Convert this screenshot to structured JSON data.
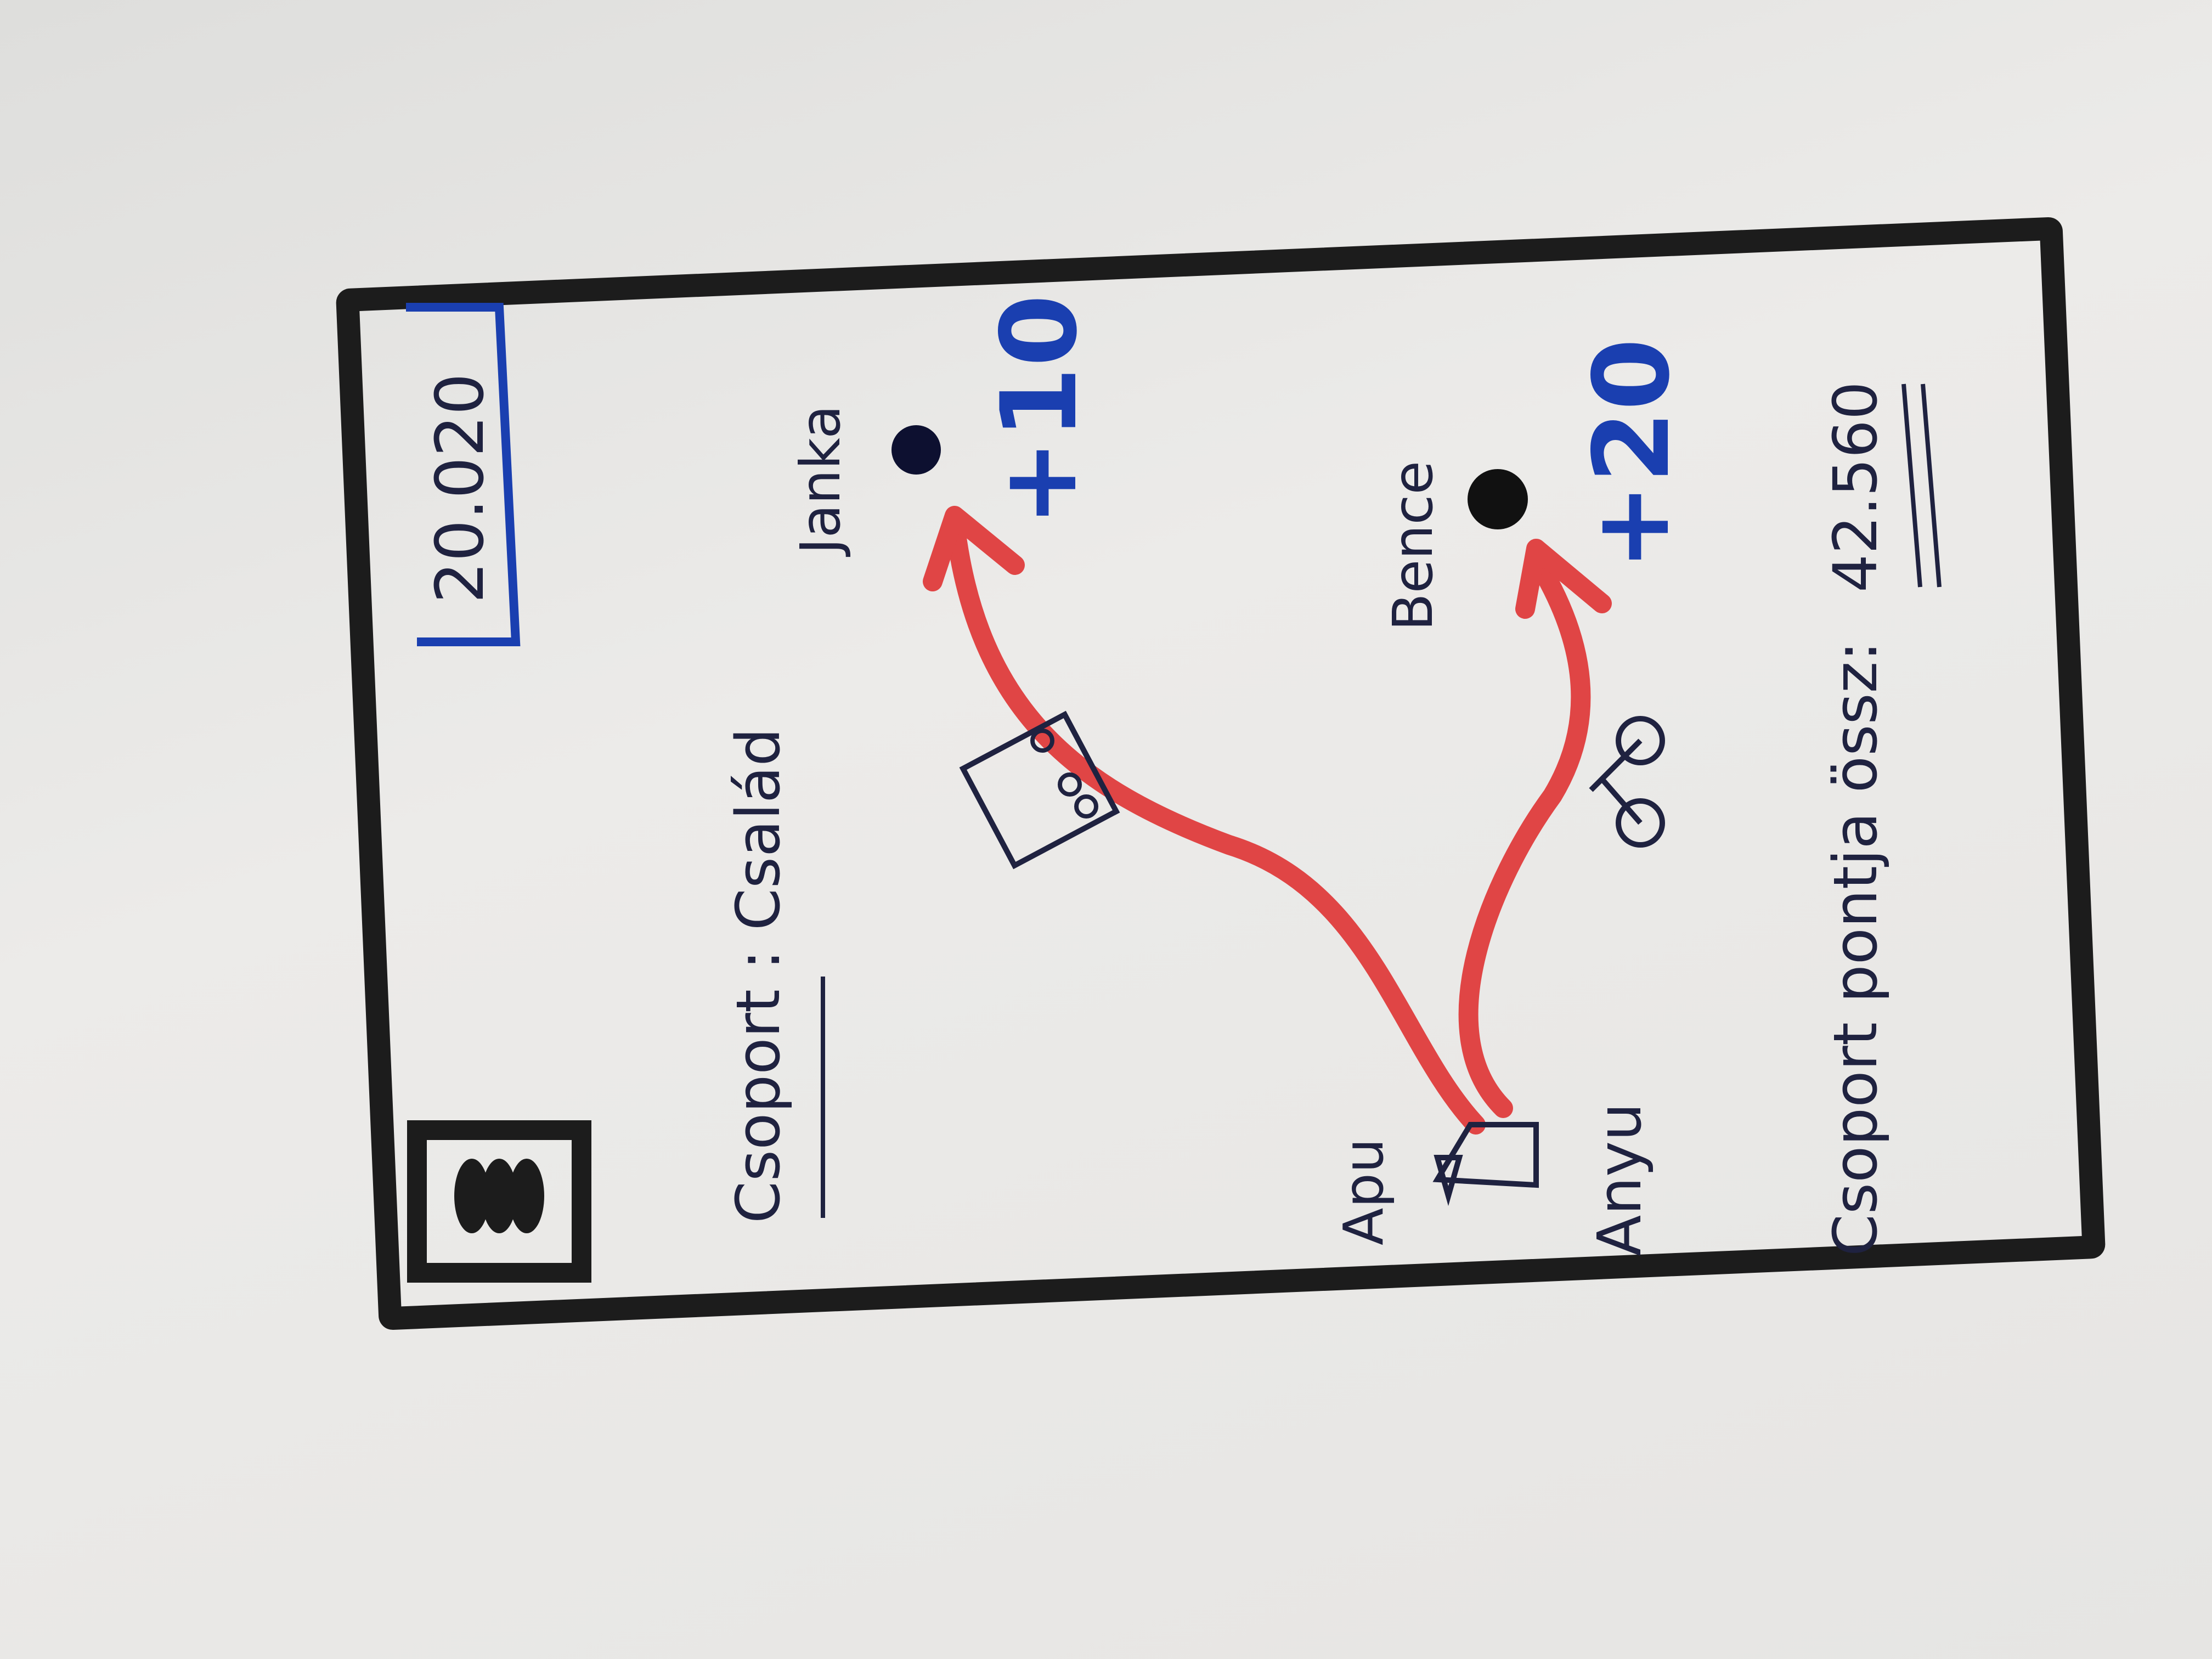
{
  "score_box": {
    "value": "20.020"
  },
  "menu_button": {
    "icon": "hamburger-menu-icon"
  },
  "group": {
    "label": "Csoport : Család"
  },
  "members": {
    "apu": {
      "name": "Apu"
    },
    "anyu": {
      "name": "Anyu"
    },
    "janka": {
      "name": "Janka",
      "points": "+10",
      "transport": "bus-icon"
    },
    "bence": {
      "name": "Bence",
      "points": "+20",
      "transport": "bicycle-icon"
    }
  },
  "total": {
    "label": "Csoport pontja össz:",
    "value": "42.560"
  },
  "colors": {
    "frame": "#1c1c1c",
    "arrow": "#e04545",
    "ink": "#1f2240",
    "accent": "#1a3fb0"
  }
}
